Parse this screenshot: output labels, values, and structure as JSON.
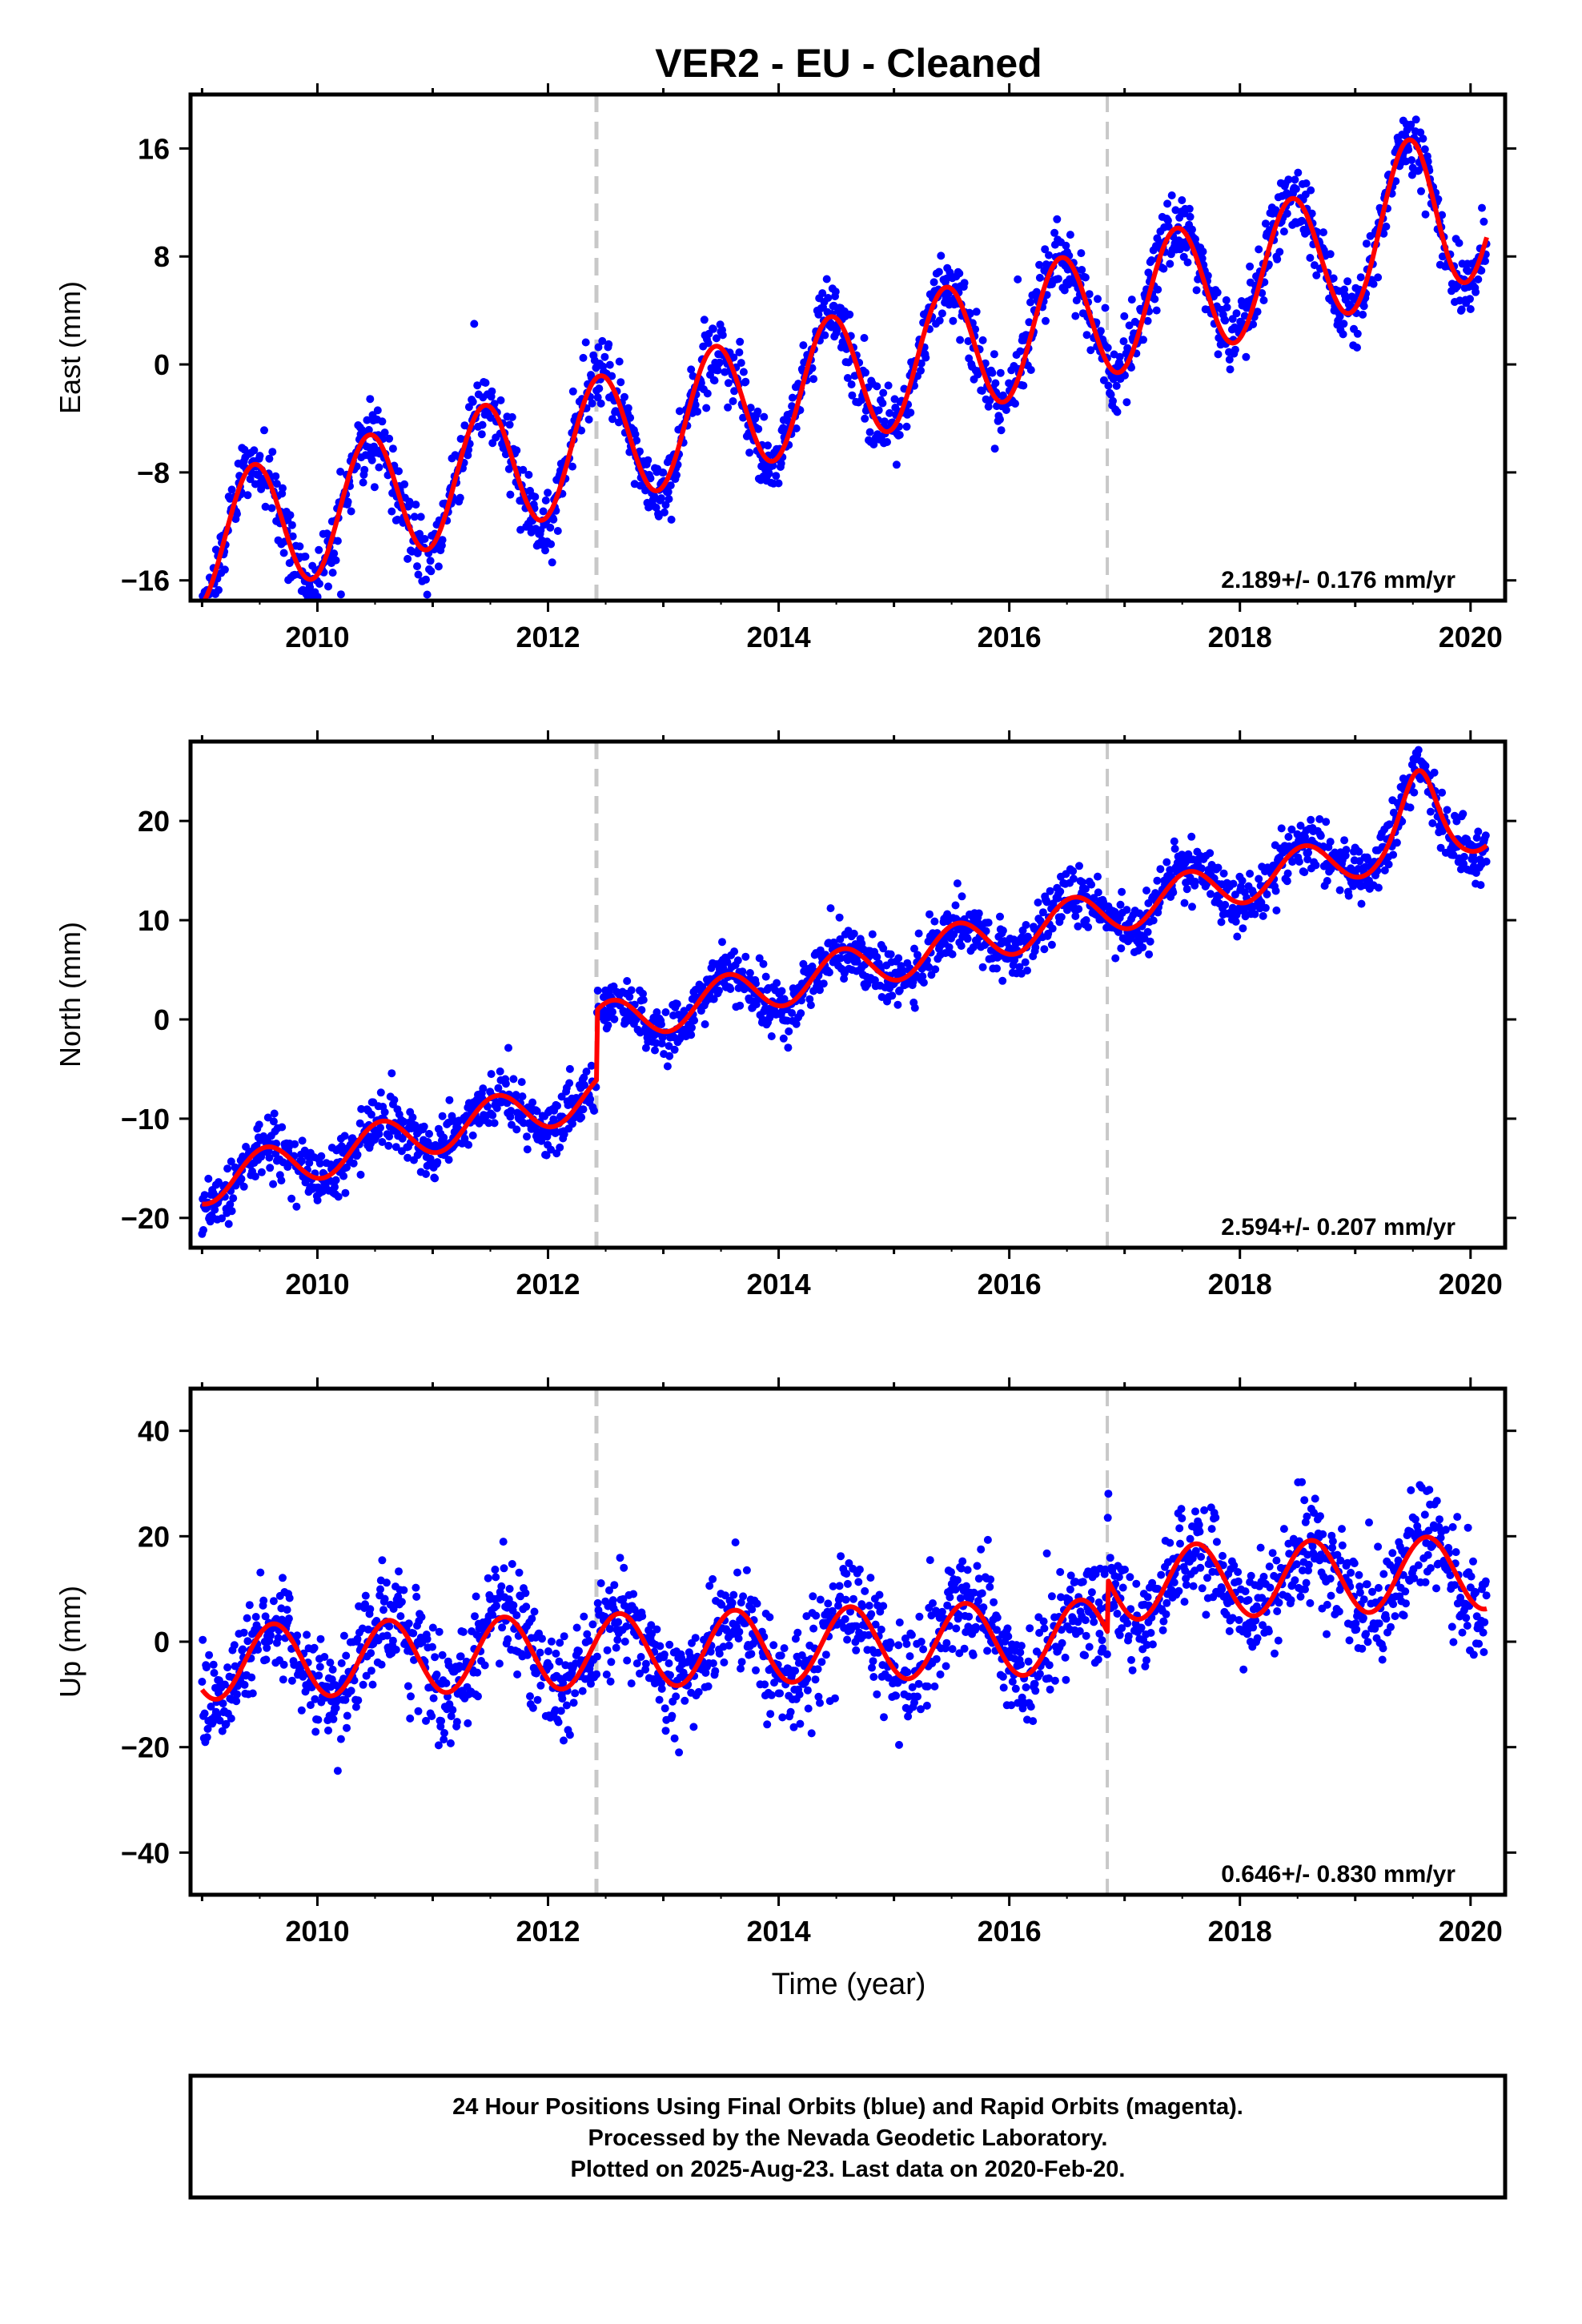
{
  "title": "VER2  - EU - Cleaned",
  "xlabel": "Time (year)",
  "footer": {
    "line1": "24 Hour Positions Using Final Orbits (blue) and Rapid Orbits (magenta).",
    "line2": "Processed by the Nevada Geodetic Laboratory.",
    "line3": "Plotted on 2025-Aug-23. Last data on 2020-Feb-20."
  },
  "colors": {
    "points": "#0000ff",
    "model": "#ff0000",
    "offsets": "#c8c8c8",
    "frame": "#000000"
  },
  "chart_data": [
    {
      "type": "scatter",
      "component": "East",
      "ylabel": "East (mm)",
      "rate_label": "2.189+/- 0.176 mm/yr",
      "xlim": [
        2008.9,
        2020.3
      ],
      "ylim": [
        -17.5,
        20
      ],
      "yticks": [
        -16,
        -8,
        0,
        8,
        16
      ],
      "xticks": [
        2010,
        2012,
        2014,
        2016,
        2018,
        2020
      ],
      "offset_lines": [
        2012.42,
        2016.85
      ],
      "model": {
        "start": 2009.0,
        "end": 2020.14,
        "intercept_at_start": -13.2,
        "rate": 2.189,
        "amplitude": 4.8,
        "peak_phase": 0.45,
        "step": [],
        "extra": [
          [
            2019.5,
            2.2,
            0.25
          ]
        ]
      },
      "scatter_noise": 1.3,
      "grid": false
    },
    {
      "type": "scatter",
      "component": "North",
      "ylabel": "North (mm)",
      "rate_label": "2.594+/- 0.207 mm/yr",
      "xlim": [
        2008.9,
        2020.3
      ],
      "ylim": [
        -23,
        28
      ],
      "yticks": [
        -20,
        -10,
        0,
        10,
        20
      ],
      "xticks": [
        2010,
        2012,
        2014,
        2016,
        2018,
        2020
      ],
      "offset_lines": [
        2012.42,
        2016.85
      ],
      "model": {
        "start": 2009.0,
        "end": 2020.14,
        "intercept_at_start": -16.5,
        "rate": 2.594,
        "amplitude": 2.2,
        "peak_phase": 0.55,
        "step": [
          [
            2012.42,
            7.0
          ]
        ],
        "extra": [
          [
            2019.55,
            5.0,
            0.18
          ]
        ]
      },
      "scatter_noise": 1.4,
      "grid": false
    },
    {
      "type": "scatter",
      "component": "Up",
      "ylabel": "Up (mm)",
      "rate_label": "0.646+/- 0.830 mm/yr",
      "xlim": [
        2008.9,
        2020.3
      ],
      "ylim": [
        -48,
        48
      ],
      "yticks": [
        -40,
        -20,
        0,
        20,
        40
      ],
      "xticks": [
        2010,
        2012,
        2014,
        2016,
        2018,
        2020
      ],
      "offset_lines": [
        2012.42,
        2016.85
      ],
      "model": {
        "start": 2009.0,
        "end": 2020.14,
        "intercept_at_start": -4.0,
        "rate": 0.646,
        "amplitude": 7.0,
        "peak_phase": 0.62,
        "step": [
          [
            2016.85,
            10.0
          ]
        ],
        "extra": []
      },
      "scatter_noise": 5.0,
      "grid": false
    }
  ]
}
